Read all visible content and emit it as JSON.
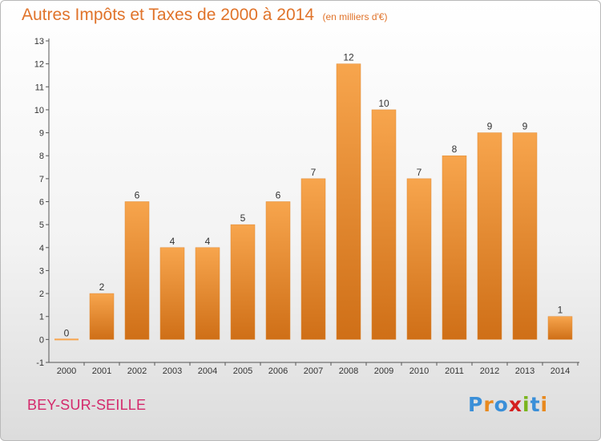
{
  "header": {
    "title": "Autres Impôts et Taxes de 2000 à 2014",
    "subtitle": "(en milliers d'€)"
  },
  "footer": {
    "commune": "BEY-SUR-SEILLE",
    "logo_letters": [
      {
        "char": "P",
        "color": "#3a8fd8"
      },
      {
        "char": "r",
        "color": "#e8891e"
      },
      {
        "char": "o",
        "color": "#3a8fd8"
      },
      {
        "char": "x",
        "color": "#d42020"
      },
      {
        "char": "i",
        "color": "#7ab51d"
      },
      {
        "char": "t",
        "color": "#3a8fd8"
      },
      {
        "char": "i",
        "color": "#e8891e"
      }
    ]
  },
  "colors": {
    "bar_light": "#f7a54d",
    "bar_dark": "#cf6f17",
    "axis": "#555555",
    "text": "#333333",
    "title": "#e0732a",
    "commune": "#d4286b"
  },
  "chart_data": {
    "type": "bar",
    "title": "Autres Impôts et Taxes de 2000 à 2014",
    "subtitle": "(en milliers d'€)",
    "categories": [
      "2000",
      "2001",
      "2002",
      "2003",
      "2004",
      "2005",
      "2006",
      "2007",
      "2008",
      "2009",
      "2010",
      "2011",
      "2012",
      "2013",
      "2014"
    ],
    "values": [
      0,
      2,
      6,
      4,
      4,
      5,
      6,
      7,
      12,
      10,
      7,
      8,
      9,
      9,
      1
    ],
    "data_labels": [
      "0",
      "2",
      "6",
      "4",
      "4",
      "5",
      "6",
      "7",
      "12",
      "10",
      "7",
      "8",
      "9",
      "9",
      "1"
    ],
    "ylim": [
      -1,
      13
    ],
    "yticks": [
      "-1",
      "0",
      "1",
      "2",
      "3",
      "4",
      "5",
      "6",
      "7",
      "8",
      "9",
      "10",
      "11",
      "12",
      "13"
    ],
    "grid": false,
    "legend": "none"
  }
}
